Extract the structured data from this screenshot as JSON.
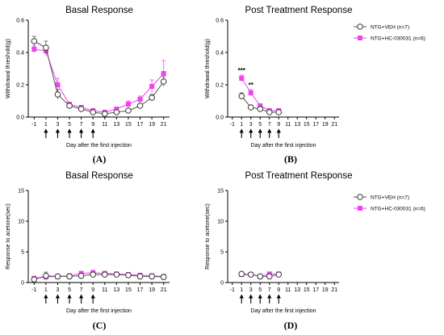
{
  "chart_data": [
    {
      "type": "line",
      "title": "Basal Response",
      "xlabel": "Day after the first injection",
      "ylabel": "Withdrawal threshold(g)",
      "panel_label": "(A)",
      "x_ticks": [
        -1,
        1,
        3,
        5,
        7,
        9,
        11,
        13,
        15,
        17,
        19,
        21
      ],
      "y_ticks": [
        0.0,
        0.2,
        0.4,
        0.6
      ],
      "ylim": [
        0,
        0.6
      ],
      "injection_days": [
        1,
        3,
        5,
        7,
        9
      ],
      "series": [
        {
          "name": "NTG+VEH (n=7)",
          "x": [
            -1,
            1,
            3,
            5,
            7,
            9,
            11,
            13,
            15,
            17,
            19,
            21
          ],
          "y": [
            0.47,
            0.43,
            0.14,
            0.07,
            0.05,
            0.03,
            0.02,
            0.03,
            0.04,
            0.07,
            0.12,
            0.22
          ],
          "err": [
            0.03,
            0.04,
            0.03,
            0.01,
            0.01,
            0.01,
            0.01,
            0.01,
            0.01,
            0.01,
            0.02,
            0.03
          ]
        },
        {
          "name": "NTG+HC-030031 (n=6)",
          "x": [
            -1,
            1,
            3,
            5,
            7,
            9,
            11,
            13,
            15,
            17,
            19,
            21
          ],
          "y": [
            0.42,
            0.41,
            0.2,
            0.08,
            0.06,
            0.04,
            0.03,
            0.05,
            0.08,
            0.11,
            0.19,
            0.27
          ],
          "err": [
            0.02,
            0.03,
            0.04,
            0.01,
            0.01,
            0.01,
            0.01,
            0.01,
            0.02,
            0.02,
            0.04,
            0.08
          ]
        }
      ],
      "legend": "none"
    },
    {
      "type": "line",
      "title": "Post Treatment Response",
      "xlabel": "Day after the first injection",
      "ylabel": "Withdrawal threshold(g)",
      "panel_label": "(B)",
      "x_ticks": [
        -1,
        1,
        3,
        5,
        7,
        9,
        11,
        13,
        15,
        17,
        19,
        21
      ],
      "y_ticks": [
        0.0,
        0.2,
        0.4,
        0.6
      ],
      "ylim": [
        0,
        0.6
      ],
      "injection_days": [
        1,
        3,
        5,
        7,
        9
      ],
      "annotations": [
        {
          "x": 1,
          "text": "***"
        },
        {
          "x": 3,
          "text": "**"
        }
      ],
      "series": [
        {
          "name": "NTG+VEH (n=7)",
          "x": [
            1,
            3,
            5,
            7,
            9
          ],
          "y": [
            0.13,
            0.06,
            0.05,
            0.03,
            0.03
          ],
          "err": [
            0.02,
            0.01,
            0.01,
            0.01,
            0.01
          ]
        },
        {
          "name": "NTG+HC-030031 (n=6)",
          "x": [
            1,
            3,
            5,
            7,
            9
          ],
          "y": [
            0.24,
            0.15,
            0.07,
            0.04,
            0.04
          ],
          "err": [
            0.02,
            0.02,
            0.01,
            0.01,
            0.01
          ]
        }
      ],
      "legend": "right"
    },
    {
      "type": "line",
      "title": "Basal Response",
      "xlabel": "Day after the first injection",
      "ylabel": "Response to acetone(sec)",
      "panel_label": "(C)",
      "x_ticks": [
        -1,
        1,
        3,
        5,
        7,
        9,
        11,
        13,
        15,
        17,
        19,
        21
      ],
      "y_ticks": [
        0,
        5,
        10,
        15
      ],
      "ylim": [
        0,
        15
      ],
      "injection_days": [
        1,
        3,
        5,
        7,
        9
      ],
      "series": [
        {
          "name": "NTG+VEH (n=7)",
          "x": [
            -1,
            1,
            3,
            5,
            7,
            9,
            11,
            13,
            15,
            17,
            19,
            21
          ],
          "y": [
            0.5,
            1.1,
            1.0,
            1.0,
            1.1,
            1.3,
            1.3,
            1.3,
            1.2,
            1.0,
            1.0,
            0.9
          ],
          "err": [
            0.2,
            0.6,
            0.3,
            0.3,
            0.3,
            0.3,
            0.2,
            0.2,
            0.2,
            0.3,
            0.3,
            0.3
          ]
        },
        {
          "name": "NTG+HC-030031 (n=6)",
          "x": [
            -1,
            1,
            3,
            5,
            7,
            9,
            11,
            13,
            15,
            17,
            19,
            21
          ],
          "y": [
            0.7,
            0.9,
            1.0,
            1.1,
            1.5,
            1.6,
            1.5,
            1.4,
            1.3,
            1.2,
            1.1,
            1.0
          ],
          "err": [
            0.2,
            0.3,
            0.3,
            0.3,
            0.3,
            0.4,
            0.3,
            0.2,
            0.2,
            0.3,
            0.3,
            0.3
          ]
        }
      ],
      "legend": "none"
    },
    {
      "type": "line",
      "title": "Post Treatment Response",
      "xlabel": "Day after the first injection",
      "ylabel": "Response to acetone(sec)",
      "panel_label": "(D)",
      "x_ticks": [
        -1,
        1,
        3,
        5,
        7,
        9,
        11,
        13,
        15,
        17,
        19,
        21
      ],
      "y_ticks": [
        0,
        5,
        10,
        15
      ],
      "ylim": [
        0,
        15
      ],
      "injection_days": [
        1,
        3,
        5,
        7,
        9
      ],
      "series": [
        {
          "name": "NTG+VEH (n=7)",
          "x": [
            1,
            3,
            5,
            7,
            9
          ],
          "y": [
            1.4,
            1.3,
            1.0,
            1.0,
            1.3
          ],
          "err": [
            0.3,
            0.3,
            0.2,
            0.2,
            0.3
          ]
        },
        {
          "name": "NTG+HC-030031 (n=6)",
          "x": [
            1,
            3,
            5,
            7,
            9
          ],
          "y": [
            1.3,
            1.3,
            1.0,
            1.4,
            1.4
          ],
          "err": [
            0.3,
            0.3,
            0.2,
            0.3,
            0.3
          ]
        }
      ],
      "legend": "right"
    }
  ],
  "colors": {
    "series_0": "#555555",
    "series_1": "#ee44ee",
    "axis": "#000000"
  }
}
